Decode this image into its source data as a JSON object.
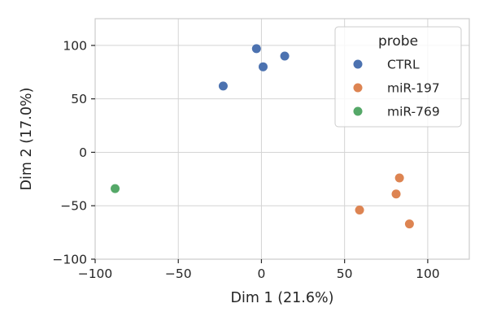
{
  "chart_data": {
    "type": "scatter",
    "title": "",
    "xlabel": "Dim 1 (21.6%)",
    "ylabel": "Dim 2 (17.0%)",
    "xlim": [
      -100,
      125
    ],
    "ylim": [
      -100,
      125
    ],
    "xticks": [
      -100,
      -50,
      0,
      50,
      100
    ],
    "yticks": [
      -100,
      -50,
      0,
      50,
      100
    ],
    "xtick_labels": [
      "−100",
      "−50",
      "0",
      "50",
      "100"
    ],
    "ytick_labels": [
      "−100",
      "−50",
      "0",
      "50",
      "100"
    ],
    "grid": true,
    "legend": {
      "title": "probe",
      "position": "top-right"
    },
    "series": [
      {
        "name": "CTRL",
        "color": "#4c72b0",
        "points": [
          [
            -23,
            62
          ],
          [
            -3,
            97
          ],
          [
            1,
            80
          ],
          [
            14,
            90
          ]
        ]
      },
      {
        "name": "miR-197",
        "color": "#dd8452",
        "points": [
          [
            59,
            -54
          ],
          [
            81,
            -39
          ],
          [
            83,
            -24
          ],
          [
            89,
            -67
          ]
        ]
      },
      {
        "name": "miR-769",
        "color": "#55a868",
        "points": [
          [
            -88,
            -34
          ]
        ]
      }
    ]
  }
}
